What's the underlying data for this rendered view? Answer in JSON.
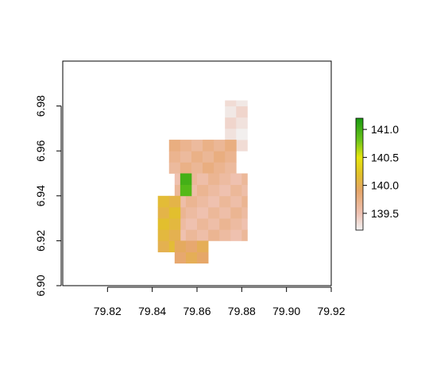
{
  "chart_data": {
    "type": "heatmap",
    "title": "",
    "xlabel": "",
    "ylabel": "",
    "xlim": [
      79.8,
      79.92
    ],
    "ylim": [
      6.9,
      7.0
    ],
    "x_ticks": [
      "79.82",
      "79.84",
      "79.86",
      "79.88",
      "79.90",
      "79.92"
    ],
    "y_ticks": [
      "6.90",
      "6.92",
      "6.94",
      "6.96",
      "6.98"
    ],
    "legend": {
      "placement": "right",
      "range": [
        139.2,
        141.2
      ],
      "ticks": [
        "139.5",
        "140.0",
        "140.5",
        "141.0"
      ],
      "color_stops": [
        {
          "value": 139.2,
          "color": "#f2f2f2"
        },
        {
          "value": 139.5,
          "color": "#efc2b3"
        },
        {
          "value": 139.9,
          "color": "#e6a66a"
        },
        {
          "value": 140.2,
          "color": "#e2c12a"
        },
        {
          "value": 140.5,
          "color": "#e6e60e"
        },
        {
          "value": 140.8,
          "color": "#6ec61b"
        },
        {
          "value": 141.2,
          "color": "#1a9a12"
        }
      ]
    },
    "grid": false,
    "raster_cell_size_deg": 0.005,
    "raster_regions": [
      {
        "name": "north-lobe",
        "x": [
          79.8725,
          79.8825
        ],
        "y": [
          6.96,
          6.9825
        ],
        "value": 139.3
      },
      {
        "name": "upper-body",
        "x": [
          79.8475,
          79.8775
        ],
        "y": [
          6.95,
          6.965
        ],
        "value": 139.7
      },
      {
        "name": "main-body",
        "x": [
          79.85,
          79.8825
        ],
        "y": [
          6.92,
          6.95
        ],
        "value": 139.6
      },
      {
        "name": "west-edge",
        "x": [
          79.8425,
          79.8525
        ],
        "y": [
          6.915,
          6.94
        ],
        "value": 140.1
      },
      {
        "name": "south-part",
        "x": [
          79.85,
          79.865
        ],
        "y": [
          6.91,
          6.92
        ],
        "value": 139.95
      },
      {
        "name": "green-patch",
        "x": [
          79.8525,
          79.8575
        ],
        "y": [
          6.94,
          6.95
        ],
        "value": 141.0
      }
    ]
  }
}
